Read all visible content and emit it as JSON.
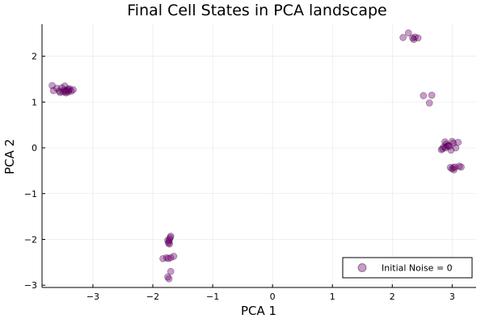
{
  "chart_data": {
    "type": "scatter",
    "title": "Final Cell States in PCA landscape",
    "xlabel": "PCA 1",
    "ylabel": "PCA 2",
    "xlim": [
      -3.85,
      3.4
    ],
    "ylim": [
      -3.05,
      2.7
    ],
    "xticks": [
      -3,
      -2,
      -1,
      0,
      1,
      2,
      3
    ],
    "yticks": [
      -3,
      -2,
      -1,
      0,
      1,
      2
    ],
    "tick_labels_x": [
      "−3",
      "−2",
      "−1",
      "0",
      "1",
      "2",
      "3"
    ],
    "tick_labels_y": [
      "−3",
      "−2",
      "−1",
      "0",
      "1",
      "2"
    ],
    "grid": true,
    "legend_position": "bottom-right",
    "marker_color": "#800080",
    "marker_opacity": 0.4,
    "series": [
      {
        "name": "Initial Noise = 0",
        "x": [
          -3.68,
          -3.66,
          -3.6,
          -3.56,
          -3.52,
          -3.5,
          -3.48,
          -3.47,
          -3.45,
          -3.44,
          -3.42,
          -3.41,
          -3.4,
          -3.39,
          -3.36,
          -3.33,
          -3.55,
          -3.46,
          -1.83,
          -1.77,
          -1.74,
          -1.7,
          -1.65,
          -1.75,
          -1.73,
          -1.7,
          -1.73,
          -1.72,
          -1.71,
          -1.7,
          -1.75,
          -1.74,
          -1.72,
          2.18,
          2.27,
          2.34,
          2.36,
          2.38,
          2.43,
          2.52,
          2.62,
          2.66,
          2.82,
          2.84,
          2.86,
          2.88,
          2.9,
          2.92,
          2.94,
          2.98,
          3.0,
          3.02,
          3.06,
          3.1,
          2.89,
          2.95,
          2.97,
          3.0,
          3.02,
          3.03,
          3.05,
          3.12,
          3.15
        ],
        "y": [
          1.36,
          1.25,
          1.3,
          1.24,
          1.31,
          1.22,
          1.26,
          1.35,
          1.2,
          1.25,
          1.28,
          1.22,
          1.26,
          1.29,
          1.24,
          1.27,
          1.21,
          1.23,
          -2.42,
          -2.4,
          -2.42,
          -2.4,
          -2.37,
          -2.82,
          -2.86,
          -2.7,
          -2.05,
          -2.1,
          -1.96,
          -1.93,
          -2.02,
          -2.08,
          -2.0,
          2.41,
          2.51,
          2.4,
          2.37,
          2.42,
          2.4,
          1.14,
          0.98,
          1.15,
          -0.04,
          -0.02,
          0.02,
          0.13,
          0.08,
          0.04,
          0.05,
          -0.05,
          0.14,
          0.1,
          0.0,
          0.12,
          0.0,
          0.03,
          -0.43,
          -0.46,
          -0.43,
          -0.48,
          -0.42,
          -0.4,
          -0.42
        ]
      }
    ]
  }
}
